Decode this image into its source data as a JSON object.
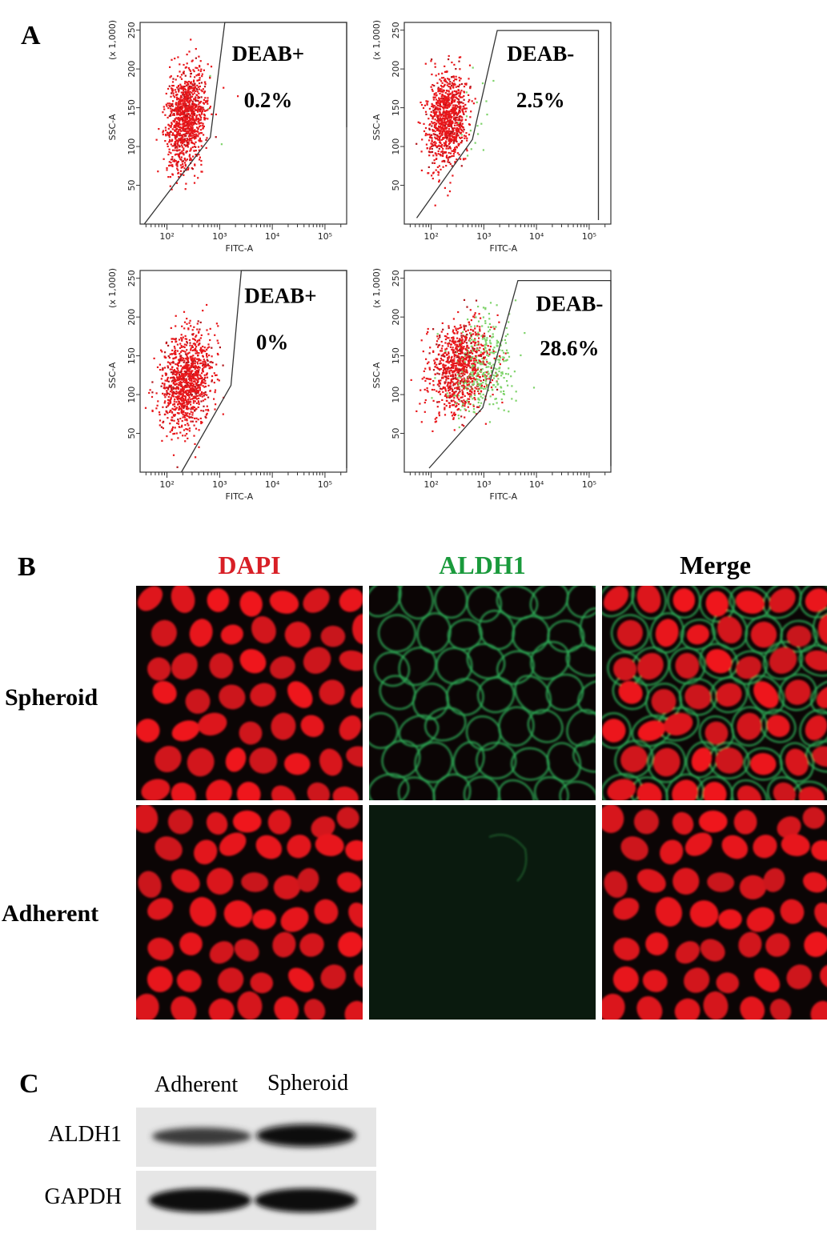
{
  "figure": {
    "panel_labels": {
      "a": "A",
      "b": "B",
      "c": "C"
    }
  },
  "colors": {
    "dapi_red": "#d81f26",
    "aldh_green": "#1a9a3c",
    "event_red": "#e8171b",
    "event_green": "#7ed36a"
  },
  "chart_data": [
    {
      "type": "scatter",
      "xlabel": "FITC-A",
      "ylabel": "SSC-A",
      "y_multiplier_label": "(x 1,000)",
      "x_scale": "log",
      "x_ticks": [
        "10²",
        "10³",
        "10⁴",
        "10⁵"
      ],
      "y_ticks": [
        "50",
        "100",
        "150",
        "200",
        "250"
      ],
      "gate_label": "DEAB+",
      "gate_value": "0.2%",
      "gate_percent": 0.2
    },
    {
      "type": "scatter",
      "xlabel": "FITC-A",
      "ylabel": "SSC-A",
      "y_multiplier_label": "(x 1,000)",
      "x_scale": "log",
      "x_ticks": [
        "10²",
        "10³",
        "10⁴",
        "10⁵"
      ],
      "y_ticks": [
        "50",
        "100",
        "150",
        "200",
        "250"
      ],
      "gate_label": "DEAB-",
      "gate_value": "2.5%",
      "gate_percent": 2.5
    },
    {
      "type": "scatter",
      "xlabel": "FITC-A",
      "ylabel": "SSC-A",
      "y_multiplier_label": "(x 1,000)",
      "x_scale": "log",
      "x_ticks": [
        "10²",
        "10³",
        "10⁴",
        "10⁵"
      ],
      "y_ticks": [
        "50",
        "100",
        "150",
        "200",
        "250"
      ],
      "gate_label": "DEAB+",
      "gate_value": "0%",
      "gate_percent": 0
    },
    {
      "type": "scatter",
      "xlabel": "FITC-A",
      "ylabel": "SSC-A",
      "y_multiplier_label": "(x 1,000)",
      "x_scale": "log",
      "x_ticks": [
        "10²",
        "10³",
        "10⁴",
        "10⁵"
      ],
      "y_ticks": [
        "50",
        "100",
        "150",
        "200",
        "250"
      ],
      "gate_label": "DEAB-",
      "gate_value": "28.6%",
      "gate_percent": 28.6
    }
  ],
  "microscopy": {
    "columns": [
      "DAPI",
      "ALDH1",
      "Merge"
    ],
    "rows": [
      "Spheroid",
      "Adherent"
    ]
  },
  "western": {
    "lanes": [
      "Adherent",
      "Spheroid"
    ],
    "rows": [
      "ALDH1",
      "GAPDH"
    ]
  }
}
